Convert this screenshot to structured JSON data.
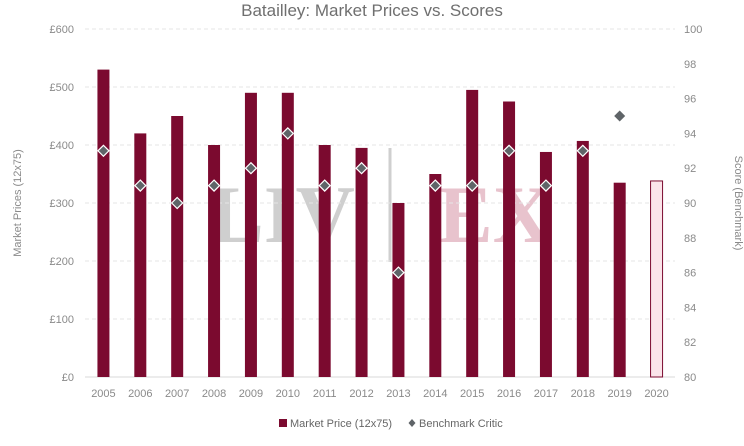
{
  "chart_data": {
    "type": "bar",
    "title": "Batailley: Market Prices vs. Scores",
    "categories": [
      "2005",
      "2006",
      "2007",
      "2008",
      "2009",
      "2010",
      "2011",
      "2012",
      "2013",
      "2014",
      "2015",
      "2016",
      "2017",
      "2018",
      "2019",
      "2020"
    ],
    "series": [
      {
        "name": "Market Price (12x75)",
        "kind": "bar",
        "axis": "left",
        "color": "#7b0a2f",
        "values": [
          530,
          420,
          450,
          400,
          490,
          490,
          400,
          395,
          300,
          350,
          495,
          475,
          388,
          407,
          335,
          338
        ],
        "highlight": {
          "category": "2020",
          "style": "outline",
          "fill": "#fbe4ea"
        }
      },
      {
        "name": "Benchmark Critic",
        "kind": "scatter",
        "marker": "diamond",
        "axis": "right",
        "color": "#5f6468",
        "values": [
          93,
          91,
          90,
          91,
          92,
          94,
          91,
          92,
          86,
          91,
          91,
          93,
          91,
          93,
          95,
          null
        ]
      }
    ],
    "ylabel_left": "Market Prices (12x75)",
    "ylabel_right": "Score (Benchmark)",
    "ylim_left": [
      0,
      600
    ],
    "ylim_right": [
      80,
      100
    ],
    "yticks_left": [
      "£0",
      "£100",
      "£200",
      "£300",
      "£400",
      "£500",
      "£600"
    ],
    "yticks_right": [
      "80",
      "82",
      "84",
      "86",
      "88",
      "90",
      "92",
      "94",
      "96",
      "98",
      "100"
    ],
    "grid": true,
    "legend": "bottom-center",
    "watermark": {
      "left": "LIV",
      "right": "EX",
      "left_color": "#cfcfcf",
      "right_color": "#e8c3cd"
    }
  }
}
